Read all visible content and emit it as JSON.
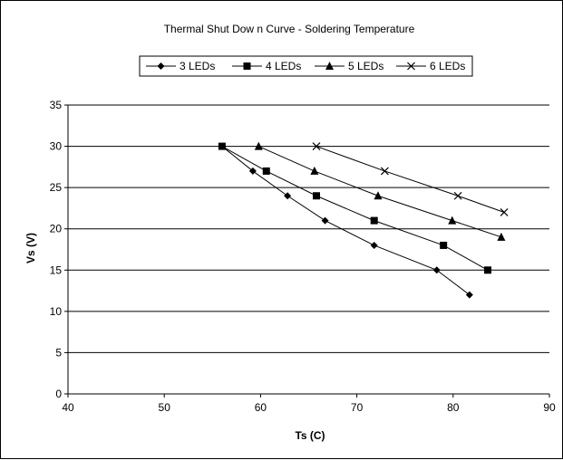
{
  "chart_data": {
    "type": "line",
    "title": "Thermal Shut Dow n Curve - Soldering Temperature",
    "xlabel": "Ts (C)",
    "ylabel": "Vs (V)",
    "xlim": [
      40,
      90
    ],
    "ylim": [
      0,
      35
    ],
    "xticks": [
      "40",
      "50",
      "60",
      "70",
      "80",
      "90"
    ],
    "yticks": [
      "0",
      "5",
      "10",
      "15",
      "20",
      "25",
      "30",
      "35"
    ],
    "grid": "horizontal",
    "legend_position": "top",
    "series": [
      {
        "name": "3 LEDs",
        "marker": "diamond",
        "x": [
          56.0,
          59.2,
          62.8,
          66.7,
          71.8,
          78.3,
          81.7
        ],
        "y": [
          30,
          27,
          24,
          21,
          18,
          15,
          12
        ]
      },
      {
        "name": "4 LEDs",
        "marker": "square",
        "x": [
          56.0,
          60.6,
          65.8,
          71.8,
          79.0,
          83.6
        ],
        "y": [
          30,
          27,
          24,
          21,
          18,
          15
        ]
      },
      {
        "name": "5 LEDs",
        "marker": "triangle",
        "x": [
          59.8,
          65.6,
          72.2,
          79.9,
          85.0
        ],
        "y": [
          30,
          27,
          24,
          21,
          19
        ]
      },
      {
        "name": "6 LEDs",
        "marker": "cross",
        "x": [
          65.8,
          72.9,
          80.5,
          85.3
        ],
        "y": [
          30,
          27,
          24,
          22
        ]
      }
    ],
    "colors": {
      "line": "#000000",
      "grid": "#000000",
      "background": "#ffffff"
    }
  }
}
